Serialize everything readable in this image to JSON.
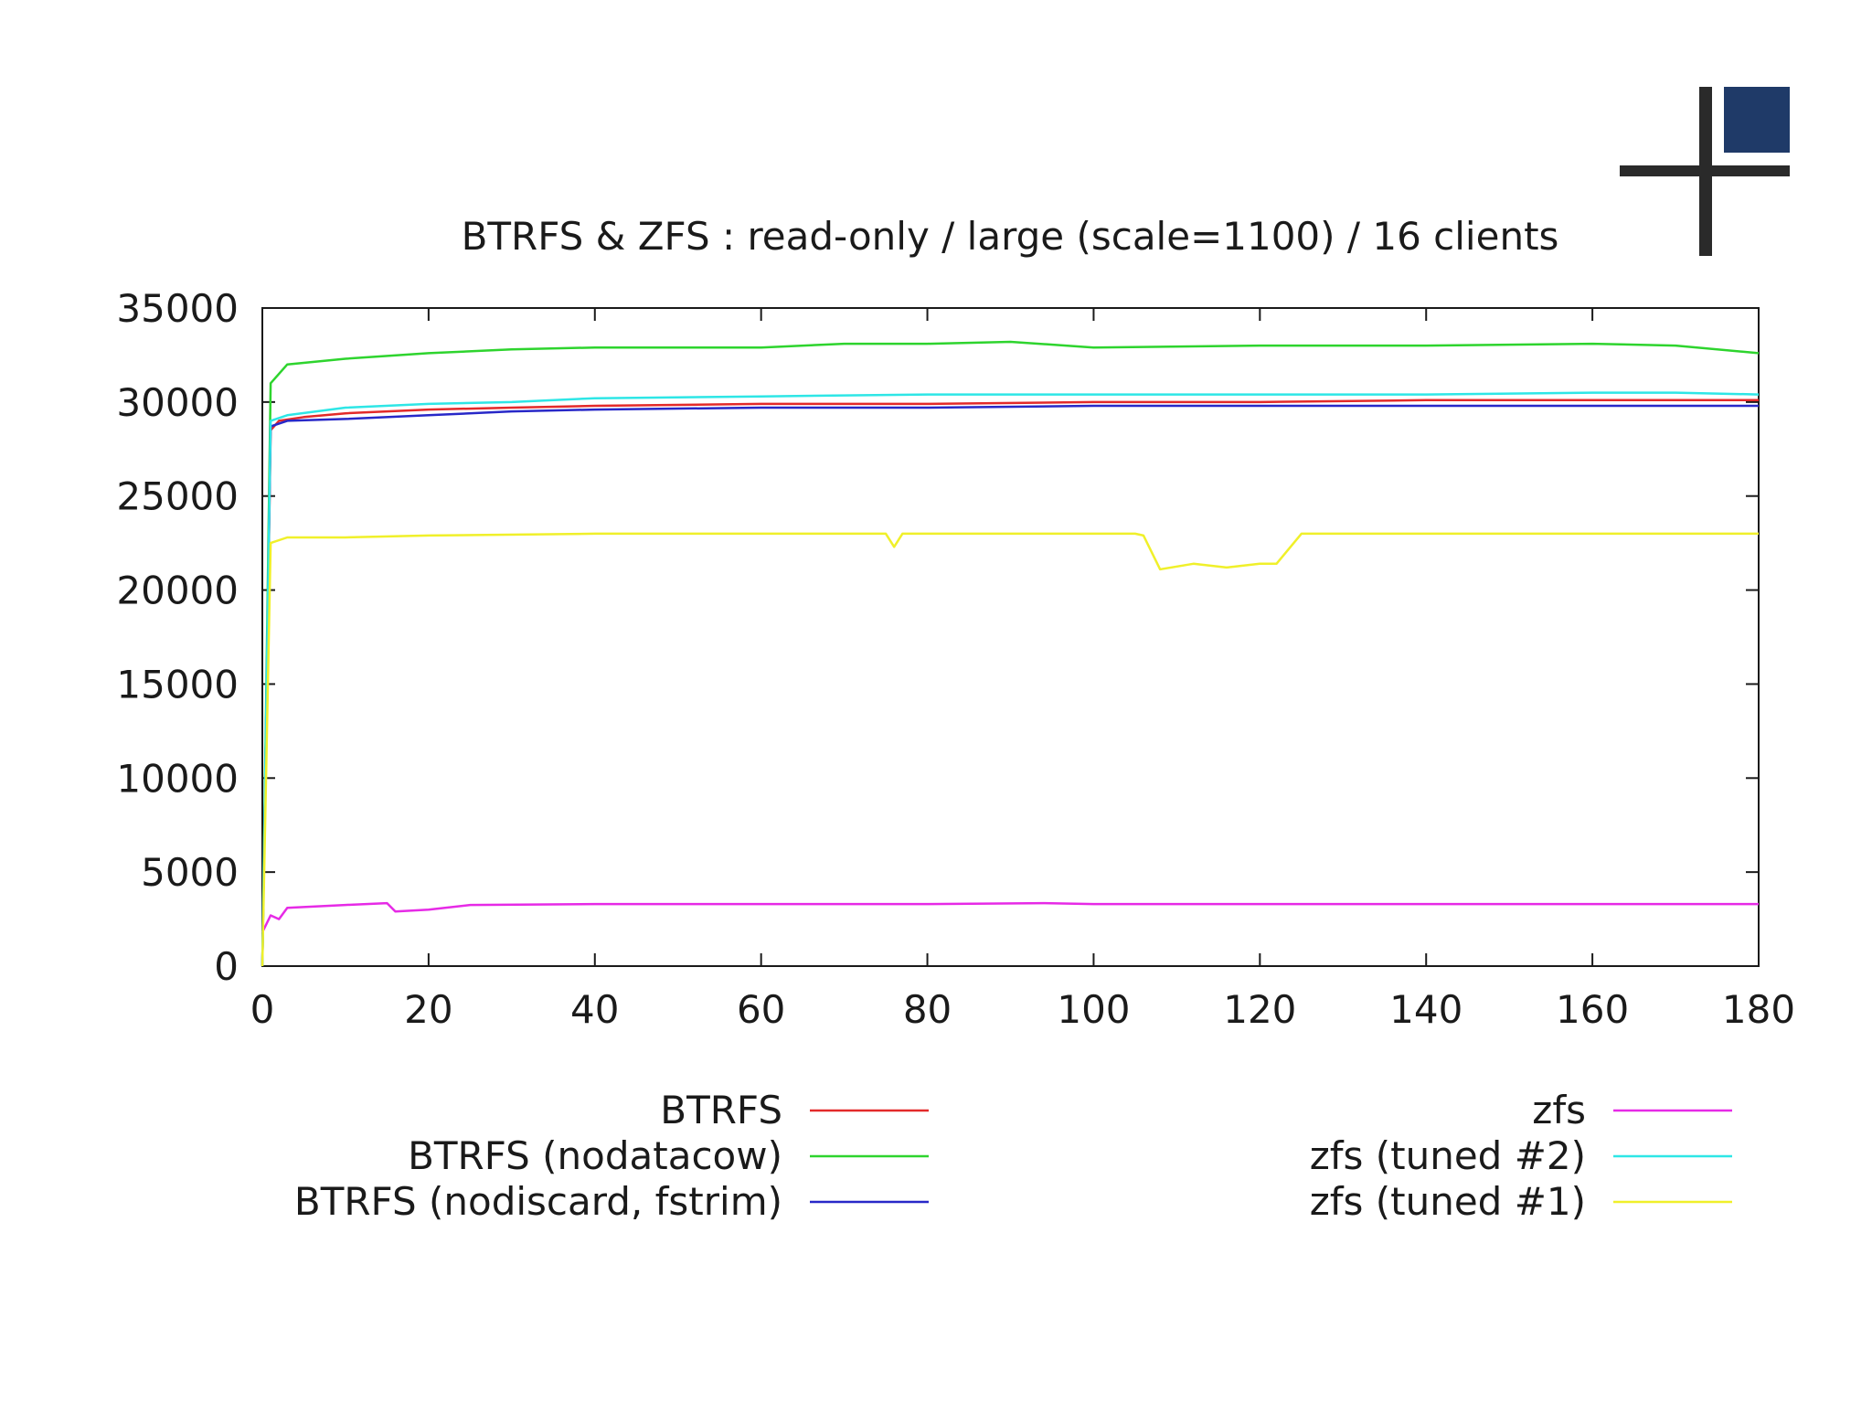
{
  "logo": {
    "name": "corner cross logo",
    "accent_color": "#1f3a68",
    "bar_color": "#2a2a2a"
  },
  "chart_data": {
    "type": "line",
    "title": "BTRFS & ZFS : read-only / large (scale=1100) / 16 clients",
    "xlabel": "",
    "ylabel": "",
    "xlim": [
      0,
      180
    ],
    "ylim": [
      0,
      35000
    ],
    "x_ticks": [
      "0",
      "20",
      "40",
      "60",
      "80",
      "100",
      "120",
      "140",
      "160",
      "180"
    ],
    "y_ticks": [
      "0",
      "5000",
      "10000",
      "15000",
      "20000",
      "25000",
      "30000",
      "35000"
    ],
    "grid": false,
    "legend_placement": "below",
    "series": [
      {
        "name": "BTRFS",
        "color": "#e32a2a",
        "points": [
          [
            0,
            0
          ],
          [
            1,
            28500
          ],
          [
            2,
            29000
          ],
          [
            5,
            29200
          ],
          [
            10,
            29400
          ],
          [
            20,
            29600
          ],
          [
            30,
            29700
          ],
          [
            40,
            29800
          ],
          [
            60,
            29900
          ],
          [
            80,
            29900
          ],
          [
            100,
            30000
          ],
          [
            120,
            30000
          ],
          [
            140,
            30100
          ],
          [
            160,
            30100
          ],
          [
            170,
            30100
          ],
          [
            180,
            30100
          ]
        ]
      },
      {
        "name": "BTRFS (nodatacow)",
        "color": "#2ed42e",
        "points": [
          [
            0,
            0
          ],
          [
            1,
            31000
          ],
          [
            3,
            32000
          ],
          [
            10,
            32300
          ],
          [
            20,
            32600
          ],
          [
            30,
            32800
          ],
          [
            40,
            32900
          ],
          [
            60,
            32900
          ],
          [
            70,
            33100
          ],
          [
            80,
            33100
          ],
          [
            90,
            33200
          ],
          [
            100,
            32900
          ],
          [
            120,
            33000
          ],
          [
            140,
            33000
          ],
          [
            160,
            33100
          ],
          [
            170,
            33000
          ],
          [
            180,
            32600
          ]
        ]
      },
      {
        "name": "BTRFS (nodiscard, fstrim)",
        "color": "#2828c8",
        "points": [
          [
            0,
            0
          ],
          [
            1,
            28700
          ],
          [
            3,
            29000
          ],
          [
            10,
            29100
          ],
          [
            20,
            29300
          ],
          [
            30,
            29500
          ],
          [
            40,
            29600
          ],
          [
            60,
            29700
          ],
          [
            80,
            29700
          ],
          [
            100,
            29800
          ],
          [
            120,
            29800
          ],
          [
            140,
            29800
          ],
          [
            160,
            29800
          ],
          [
            170,
            29800
          ],
          [
            180,
            29800
          ]
        ]
      },
      {
        "name": "zfs",
        "color": "#e62ae6",
        "points": [
          [
            0,
            1800
          ],
          [
            1,
            2700
          ],
          [
            2,
            2500
          ],
          [
            3,
            3100
          ],
          [
            10,
            3250
          ],
          [
            15,
            3350
          ],
          [
            16,
            2900
          ],
          [
            20,
            3000
          ],
          [
            25,
            3250
          ],
          [
            40,
            3300
          ],
          [
            60,
            3300
          ],
          [
            80,
            3300
          ],
          [
            94,
            3350
          ],
          [
            100,
            3300
          ],
          [
            120,
            3300
          ],
          [
            140,
            3300
          ],
          [
            160,
            3300
          ],
          [
            180,
            3300
          ]
        ]
      },
      {
        "name": "zfs (tuned #2)",
        "color": "#2ee6e6",
        "points": [
          [
            0,
            0
          ],
          [
            1,
            29000
          ],
          [
            3,
            29300
          ],
          [
            10,
            29700
          ],
          [
            20,
            29900
          ],
          [
            30,
            30000
          ],
          [
            40,
            30200
          ],
          [
            60,
            30300
          ],
          [
            80,
            30400
          ],
          [
            100,
            30400
          ],
          [
            120,
            30400
          ],
          [
            140,
            30400
          ],
          [
            160,
            30500
          ],
          [
            170,
            30500
          ],
          [
            180,
            30400
          ]
        ]
      },
      {
        "name": "zfs (tuned #1)",
        "color": "#f0f02a",
        "points": [
          [
            0,
            0
          ],
          [
            1,
            22500
          ],
          [
            3,
            22800
          ],
          [
            10,
            22800
          ],
          [
            20,
            22900
          ],
          [
            40,
            23000
          ],
          [
            60,
            23000
          ],
          [
            75,
            23000
          ],
          [
            76,
            22300
          ],
          [
            77,
            23000
          ],
          [
            90,
            23000
          ],
          [
            100,
            23000
          ],
          [
            105,
            23000
          ],
          [
            106,
            22900
          ],
          [
            108,
            21100
          ],
          [
            112,
            21400
          ],
          [
            116,
            21200
          ],
          [
            120,
            21400
          ],
          [
            122,
            21400
          ],
          [
            125,
            23000
          ],
          [
            140,
            23000
          ],
          [
            160,
            23000
          ],
          [
            170,
            23000
          ],
          [
            180,
            23000
          ]
        ]
      }
    ]
  }
}
